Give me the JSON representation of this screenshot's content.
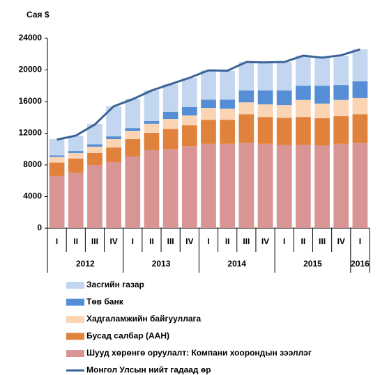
{
  "chart_data": {
    "type": "bar",
    "stacked": true,
    "y_label": "Сая $",
    "groups": [
      {
        "name": "2012",
        "categories": [
          "I",
          "II",
          "III",
          "IV"
        ]
      },
      {
        "name": "2013",
        "categories": [
          "I",
          "II",
          "III",
          "IV"
        ]
      },
      {
        "name": "2014",
        "categories": [
          "I",
          "II",
          "III",
          "IV"
        ]
      },
      {
        "name": "2015",
        "categories": [
          "I",
          "II",
          "III",
          "IV"
        ]
      },
      {
        "name": "2016",
        "categories": [
          "I"
        ]
      }
    ],
    "series": [
      {
        "name": "Засгийн газар",
        "color": "#c3d6ef",
        "values": [
          2050,
          1950,
          2600,
          3800,
          3700,
          3850,
          3500,
          3700,
          3700,
          3650,
          3600,
          3500,
          3600,
          3800,
          3550,
          3700,
          4050
        ]
      },
      {
        "name": "Төв банк",
        "color": "#558ed5",
        "values": [
          200,
          250,
          300,
          350,
          350,
          350,
          900,
          1050,
          1050,
          1150,
          1500,
          1750,
          1850,
          1800,
          2250,
          1900,
          2100
        ]
      },
      {
        "name": "Хадгаламжийн байгууллага",
        "color": "#fbd4b4",
        "values": [
          700,
          700,
          800,
          1050,
          1050,
          1150,
          1250,
          1250,
          1500,
          1400,
          1500,
          1600,
          1600,
          2150,
          1850,
          2050,
          2050
        ]
      },
      {
        "name": "Бусад салбар (ААН)",
        "color": "#e0823c",
        "values": [
          1700,
          1800,
          1500,
          1850,
          2200,
          2200,
          2550,
          2650,
          3050,
          3050,
          3600,
          3400,
          3400,
          3500,
          3450,
          3500,
          3600
        ]
      },
      {
        "name": "Шууд хөрөнгө оруулалт: Компани хоорондын зээллэг",
        "color": "#d99593",
        "values": [
          6600,
          7000,
          8000,
          8350,
          9050,
          9850,
          10000,
          10350,
          10650,
          10650,
          10800,
          10650,
          10550,
          10550,
          10450,
          10650,
          10800
        ]
      },
      {
        "name": "Монгол Улсын нийт гадаад өр",
        "type": "line",
        "color": "#3b6399",
        "values": [
          11200,
          11700,
          13100,
          15400,
          16300,
          17400,
          18200,
          19000,
          19950,
          19900,
          21000,
          20950,
          21000,
          21800,
          21550,
          21850,
          22600
        ]
      }
    ],
    "ylim": [
      0,
      24000
    ],
    "yticks": [
      0,
      4000,
      8000,
      12000,
      16000,
      20000,
      24000
    ]
  }
}
